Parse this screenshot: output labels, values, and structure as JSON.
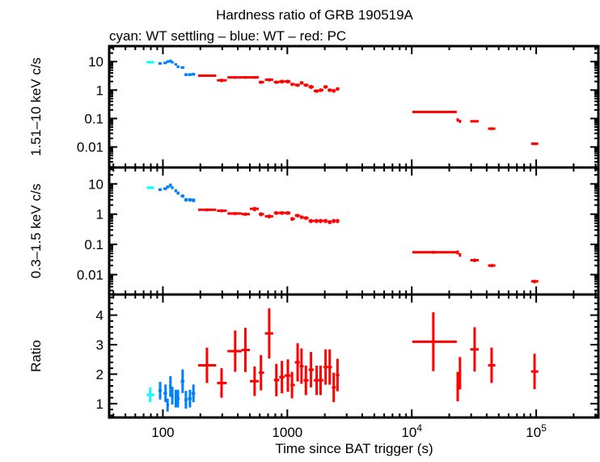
{
  "chart_data": {
    "type": "scatter",
    "title": "Hardness ratio of GRB 190519A",
    "subtitle": "cyan: WT settling – blue: WT – red: PC",
    "xlabel": "Time since BAT trigger (s)",
    "xscale": "log",
    "xlim": [
      37,
      316000
    ],
    "x_ticks": [
      {
        "value": 100,
        "label": "100"
      },
      {
        "value": 1000,
        "label": "1000"
      },
      {
        "value": 10000,
        "base": "10",
        "exp": "4"
      },
      {
        "value": 100000,
        "base": "10",
        "exp": "5"
      }
    ],
    "colors": {
      "WT settling": "#00ffff",
      "WT": "#0080ff",
      "PC": "#ff0000",
      "axes": "#000000"
    },
    "point_format": [
      "time",
      "time_lo",
      "time_hi",
      "value",
      "error"
    ],
    "panels": [
      {
        "ylabel": "1.51–10 keV c/s",
        "yscale": "log",
        "ylim": [
          0.0019,
          35
        ],
        "y_ticks": [
          {
            "value": 10,
            "label": "10"
          },
          {
            "value": 1,
            "label": "1"
          },
          {
            "value": 0.1,
            "label": "0.1"
          },
          {
            "value": 0.01,
            "label": "0.01"
          }
        ],
        "series": {
          "WT settling": [
            [
              79,
              74,
              85,
              9.5,
              0.8
            ]
          ],
          "WT": [
            [
              95,
              92,
              98,
              8.6,
              0.8
            ],
            [
              105,
              101,
              108,
              9,
              0.8
            ],
            [
              109,
              107,
              112,
              10,
              0.9
            ],
            [
              115,
              112,
              118,
              10.5,
              1.3
            ],
            [
              119,
              117,
              122,
              9.5,
              0.9
            ],
            [
              127,
              124,
              130,
              8,
              0.7
            ],
            [
              132,
              129,
              136,
              6.6,
              0.6
            ],
            [
              144,
              139,
              149,
              6.2,
              0.6
            ],
            [
              153,
              149,
              158,
              3.5,
              0.4
            ],
            [
              165,
              159,
              170,
              3.5,
              0.4
            ],
            [
              176,
              170,
              182,
              3.6,
              0.4
            ]
          ],
          "PC": [
            [
              226,
              192,
              268,
              3.2,
              0.3
            ],
            [
              296,
              272,
              326,
              2.2,
              0.3
            ],
            [
              381,
              330,
              430,
              2.8,
              0.3
            ],
            [
              460,
              430,
              500,
              2.8,
              0.3
            ],
            [
              546,
              500,
              590,
              2.8,
              0.3
            ],
            [
              614,
              590,
              650,
              1.9,
              0.25
            ],
            [
              715,
              660,
              770,
              2.3,
              0.3
            ],
            [
              816,
              780,
              860,
              1.9,
              0.25
            ],
            [
              905,
              860,
              950,
              2.0,
              0.3
            ],
            [
              1010,
              950,
              1060,
              2.0,
              0.3
            ],
            [
              1090,
              1060,
              1150,
              1.6,
              0.2
            ],
            [
              1210,
              1150,
              1260,
              1.5,
              0.2
            ],
            [
              1300,
              1260,
              1350,
              1.8,
              0.25
            ],
            [
              1410,
              1350,
              1480,
              1.5,
              0.2
            ],
            [
              1550,
              1480,
              1630,
              1.3,
              0.2
            ],
            [
              1720,
              1630,
              1800,
              0.93,
              0.13
            ],
            [
              1850,
              1800,
              1950,
              1.0,
              0.14
            ],
            [
              2030,
              1950,
              2110,
              1.3,
              0.18
            ],
            [
              2190,
              2110,
              2280,
              1.0,
              0.14
            ],
            [
              2360,
              2280,
              2450,
              0.95,
              0.14
            ],
            [
              2530,
              2450,
              2620,
              1.1,
              0.15
            ],
            [
              14900,
              10100,
              23000,
              0.17,
              0.015
            ],
            [
              23400,
              23100,
              23700,
              0.09,
              0.012
            ],
            [
              24400,
              24000,
              24800,
              0.08,
              0.01
            ],
            [
              32000,
              29500,
              34500,
              0.08,
              0.008
            ],
            [
              43800,
              41000,
              47000,
              0.044,
              0.005
            ],
            [
              97000,
              91000,
              104000,
              0.013,
              0.0015
            ]
          ]
        }
      },
      {
        "ylabel": "0.3–1.5 keV c/s",
        "yscale": "log",
        "ylim": [
          0.0022,
          35
        ],
        "y_ticks": [
          {
            "value": 10,
            "label": "10"
          },
          {
            "value": 1,
            "label": "1"
          },
          {
            "value": 0.1,
            "label": "0.1"
          },
          {
            "value": 0.01,
            "label": "0.01"
          }
        ],
        "series": {
          "WT settling": [
            [
              79,
              74,
              85,
              7.5,
              0.7
            ]
          ],
          "WT": [
            [
              95,
              92,
              98,
              6.5,
              0.7
            ],
            [
              105,
              101,
              108,
              7,
              0.8
            ],
            [
              109,
              107,
              112,
              8,
              0.9
            ],
            [
              115,
              112,
              118,
              9,
              1.3
            ],
            [
              119,
              117,
              122,
              7.5,
              0.8
            ],
            [
              127,
              124,
              130,
              6,
              0.7
            ],
            [
              132,
              129,
              136,
              5,
              0.6
            ],
            [
              144,
              139,
              149,
              4,
              0.5
            ],
            [
              153,
              149,
              158,
              3,
              0.4
            ],
            [
              165,
              159,
              170,
              3,
              0.4
            ],
            [
              176,
              170,
              182,
              2.9,
              0.4
            ]
          ],
          "PC": [
            [
              226,
              192,
              268,
              1.4,
              0.15
            ],
            [
              296,
              272,
              326,
              1.3,
              0.15
            ],
            [
              381,
              330,
              430,
              1.05,
              0.12
            ],
            [
              460,
              430,
              500,
              1.0,
              0.12
            ],
            [
              546,
              500,
              590,
              1.5,
              0.25
            ],
            [
              614,
              590,
              650,
              1.0,
              0.15
            ],
            [
              715,
              660,
              770,
              0.85,
              0.12
            ],
            [
              816,
              780,
              860,
              1.1,
              0.15
            ],
            [
              905,
              860,
              950,
              1.1,
              0.15
            ],
            [
              1010,
              950,
              1060,
              1.1,
              0.15
            ],
            [
              1090,
              1060,
              1150,
              0.7,
              0.1
            ],
            [
              1210,
              1150,
              1260,
              0.9,
              0.12
            ],
            [
              1300,
              1260,
              1350,
              0.8,
              0.11
            ],
            [
              1410,
              1350,
              1480,
              0.75,
              0.1
            ],
            [
              1550,
              1480,
              1630,
              0.6,
              0.09
            ],
            [
              1720,
              1630,
              1800,
              0.6,
              0.09
            ],
            [
              1850,
              1800,
              1950,
              0.6,
              0.09
            ],
            [
              2030,
              1950,
              2110,
              0.6,
              0.09
            ],
            [
              2190,
              2110,
              2280,
              0.55,
              0.08
            ],
            [
              2360,
              2280,
              2450,
              0.6,
              0.09
            ],
            [
              2530,
              2450,
              2620,
              0.6,
              0.09
            ],
            [
              14900,
              10100,
              23000,
              0.055,
              0.006
            ],
            [
              23400,
              23100,
              23700,
              0.055,
              0.008
            ],
            [
              24400,
              24000,
              24800,
              0.045,
              0.006
            ],
            [
              32000,
              29500,
              34500,
              0.03,
              0.004
            ],
            [
              43800,
              41000,
              47000,
              0.02,
              0.0025
            ],
            [
              97000,
              91000,
              104000,
              0.006,
              0.0008
            ]
          ]
        }
      },
      {
        "ylabel": "Ratio",
        "yscale": "linear",
        "ylim": [
          0.53,
          4.7
        ],
        "y_ticks": [
          {
            "value": 4,
            "label": "4"
          },
          {
            "value": 3,
            "label": "3"
          },
          {
            "value": 2,
            "label": "2"
          },
          {
            "value": 1,
            "label": "1"
          }
        ],
        "series": {
          "WT settling": [
            [
              79,
              74,
              85,
              1.3,
              0.25
            ]
          ],
          "WT": [
            [
              95,
              92,
              98,
              1.44,
              0.3
            ],
            [
              105,
              101,
              108,
              1.35,
              0.3
            ],
            [
              109,
              107,
              112,
              0.95,
              0.22
            ],
            [
              115,
              112,
              118,
              1.58,
              0.35
            ],
            [
              119,
              117,
              122,
              1.27,
              0.3
            ],
            [
              127,
              124,
              130,
              1.17,
              0.3
            ],
            [
              132,
              129,
              136,
              1.17,
              0.3
            ],
            [
              144,
              139,
              149,
              1.76,
              0.4
            ],
            [
              153,
              149,
              158,
              1.13,
              0.3
            ],
            [
              165,
              159,
              170,
              1.17,
              0.3
            ],
            [
              176,
              170,
              182,
              1.35,
              0.3
            ]
          ],
          "PC": [
            [
              226,
              192,
              268,
              2.3,
              0.6
            ],
            [
              296,
              272,
              326,
              1.7,
              0.5
            ],
            [
              381,
              330,
              430,
              2.78,
              0.7
            ],
            [
              460,
              430,
              500,
              2.82,
              0.75
            ],
            [
              546,
              500,
              590,
              1.76,
              0.5
            ],
            [
              614,
              590,
              650,
              2.05,
              0.6
            ],
            [
              715,
              660,
              770,
              3.38,
              0.85
            ],
            [
              816,
              780,
              860,
              1.8,
              0.55
            ],
            [
              905,
              860,
              950,
              1.9,
              0.55
            ],
            [
              1010,
              950,
              1060,
              1.95,
              0.55
            ],
            [
              1090,
              1060,
              1150,
              1.63,
              0.45
            ],
            [
              1210,
              1150,
              1260,
              2.4,
              0.65
            ],
            [
              1300,
              1260,
              1350,
              2.27,
              0.6
            ],
            [
              1410,
              1350,
              1480,
              1.79,
              0.5
            ],
            [
              1550,
              1480,
              1630,
              2.15,
              0.6
            ],
            [
              1720,
              1630,
              1800,
              1.79,
              0.5
            ],
            [
              1850,
              1800,
              1950,
              1.79,
              0.5
            ],
            [
              2030,
              1950,
              2110,
              2.24,
              0.6
            ],
            [
              2190,
              2110,
              2280,
              2.24,
              0.6
            ],
            [
              2360,
              2280,
              2450,
              1.55,
              0.5
            ],
            [
              2530,
              2450,
              2620,
              1.97,
              0.55
            ],
            [
              14900,
              10100,
              23000,
              3.1,
              1.0
            ],
            [
              23400,
              23100,
              23700,
              1.58,
              0.5
            ],
            [
              24400,
              24000,
              24800,
              2.03,
              0.55
            ],
            [
              32000,
              29500,
              34500,
              2.84,
              0.75
            ],
            [
              43800,
              41000,
              47000,
              2.3,
              0.6
            ],
            [
              97000,
              91000,
              104000,
              2.09,
              0.6
            ]
          ]
        }
      }
    ]
  }
}
